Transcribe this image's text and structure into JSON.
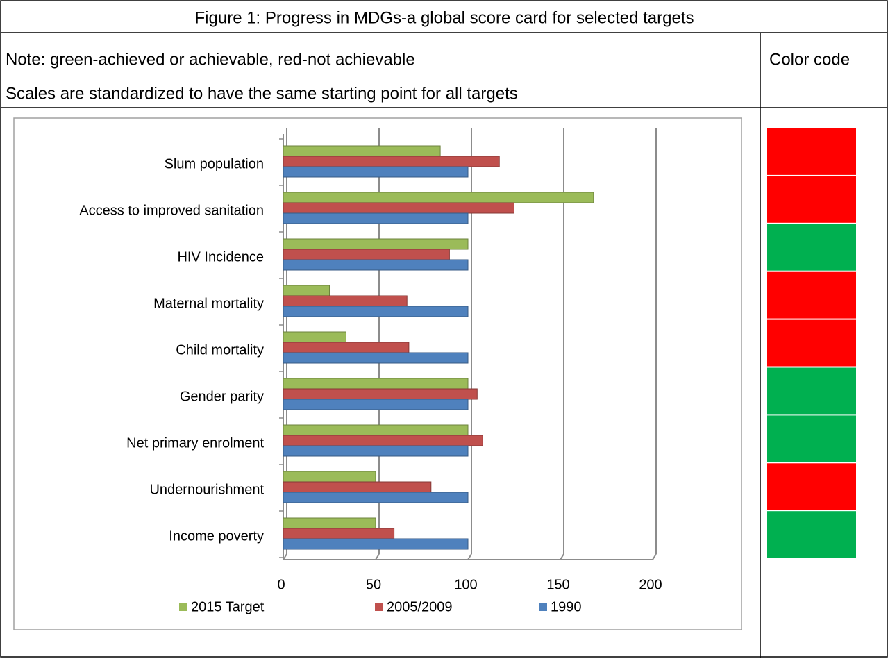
{
  "title": "Figure 1: Progress in MDGs-a global score card for selected targets",
  "note": [
    "Note: green-achieved or achievable, red-not achievable",
    "Scales are standardized to have the same starting point for all targets"
  ],
  "color_code": {
    "label": "Color code",
    "colors": [
      "#ff0000",
      "#ff0000",
      "#00b050",
      "#ff0000",
      "#ff0000",
      "#00b050",
      "#00b050",
      "#ff0000",
      "#00b050"
    ]
  },
  "chart_data": {
    "type": "bar",
    "orientation": "horizontal",
    "categories": [
      "Slum population",
      "Access to improved sanitation",
      "HIV Incidence",
      "Maternal mortality",
      "Child mortality",
      "Gender parity",
      "Net primary enrolment",
      "Undernourishment",
      "Income poverty"
    ],
    "series": [
      {
        "name": "2015 Target",
        "color": "#9bbb59",
        "values": [
          85,
          168,
          100,
          25,
          34,
          100,
          100,
          50,
          50
        ]
      },
      {
        "name": "2005/2009",
        "color": "#c0504d",
        "values": [
          117,
          125,
          90,
          67,
          68,
          105,
          108,
          80,
          60
        ]
      },
      {
        "name": "1990",
        "color": "#4f81bd",
        "values": [
          100,
          100,
          100,
          100,
          100,
          100,
          100,
          100,
          100
        ]
      }
    ],
    "xlim": [
      0,
      200
    ],
    "xticks": [
      0,
      50,
      100,
      150,
      200
    ],
    "grid": true,
    "legend": "bottom"
  }
}
